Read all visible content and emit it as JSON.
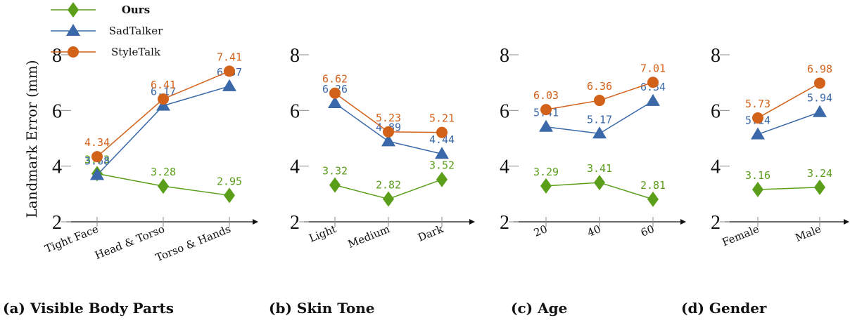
{
  "colors": {
    "ours": "#5a9e1a",
    "sadtalker": "#3a68a8",
    "styletalk": "#d2611a",
    "axis": "#111111"
  },
  "ylabel": "Landmark Error (mm)",
  "legend": [
    {
      "key": "ours",
      "label": "Ours",
      "marker": "diamond"
    },
    {
      "key": "sadtalker",
      "label": "SadTalker",
      "marker": "triangle"
    },
    {
      "key": "styletalk",
      "label": "StyleTalk",
      "marker": "circle"
    }
  ],
  "chart_data": [
    {
      "type": "line",
      "caption": "(a) Visible Body Parts",
      "categories": [
        "Tight Face",
        "Head & Torso",
        "Torso & Hands"
      ],
      "ylim": [
        2,
        8
      ],
      "yticks": [
        2,
        4,
        6,
        8
      ],
      "series": [
        {
          "name": "Ours",
          "key": "ours",
          "values": [
            3.73,
            3.28,
            2.95
          ],
          "labels": [
            "3.73",
            "3.28",
            "2.95"
          ]
        },
        {
          "name": "SadTalker",
          "key": "sadtalker",
          "values": [
            3.68,
            6.17,
            6.87
          ],
          "labels": [
            "3.68",
            "6.17",
            "6.87"
          ]
        },
        {
          "name": "StyleTalk",
          "key": "styletalk",
          "values": [
            4.34,
            6.41,
            7.41
          ],
          "labels": [
            "4.34",
            "6.41",
            "7.41"
          ]
        }
      ]
    },
    {
      "type": "line",
      "caption": "(b) Skin Tone",
      "categories": [
        "Light",
        "Medium",
        "Dark"
      ],
      "ylim": [
        2,
        8
      ],
      "yticks": [
        2,
        4,
        6,
        8
      ],
      "series": [
        {
          "name": "Ours",
          "key": "ours",
          "values": [
            3.32,
            2.82,
            3.52
          ],
          "labels": [
            "3.32",
            "2.82",
            "3.52"
          ]
        },
        {
          "name": "SadTalker",
          "key": "sadtalker",
          "values": [
            6.26,
            4.89,
            4.44
          ],
          "labels": [
            "6.26",
            "4.89",
            "4.44"
          ]
        },
        {
          "name": "StyleTalk",
          "key": "styletalk",
          "values": [
            6.62,
            5.23,
            5.21
          ],
          "labels": [
            "6.62",
            "5.23",
            "5.21"
          ]
        }
      ]
    },
    {
      "type": "line",
      "caption": "(c) Age",
      "categories": [
        "20",
        "40",
        "60"
      ],
      "ylim": [
        2,
        8
      ],
      "yticks": [
        2,
        4,
        6,
        8
      ],
      "series": [
        {
          "name": "Ours",
          "key": "ours",
          "values": [
            3.29,
            3.41,
            2.81
          ],
          "labels": [
            "3.29",
            "3.41",
            "2.81"
          ]
        },
        {
          "name": "SadTalker",
          "key": "sadtalker",
          "values": [
            5.41,
            5.17,
            6.34
          ],
          "labels": [
            "5.41",
            "5.17",
            "6.34"
          ]
        },
        {
          "name": "StyleTalk",
          "key": "styletalk",
          "values": [
            6.03,
            6.36,
            7.01
          ],
          "labels": [
            "6.03",
            "6.36",
            "7.01"
          ]
        }
      ]
    },
    {
      "type": "line",
      "caption": "(d) Gender",
      "categories": [
        "Female",
        "Male"
      ],
      "ylim": [
        2,
        8
      ],
      "yticks": [
        2,
        4,
        6,
        8
      ],
      "series": [
        {
          "name": "Ours",
          "key": "ours",
          "values": [
            3.16,
            3.24
          ],
          "labels": [
            "3.16",
            "3.24"
          ]
        },
        {
          "name": "SadTalker",
          "key": "sadtalker",
          "values": [
            5.14,
            5.94
          ],
          "labels": [
            "5.14",
            "5.94"
          ]
        },
        {
          "name": "StyleTalk",
          "key": "styletalk",
          "values": [
            5.73,
            6.98
          ],
          "labels": [
            "5.73",
            "6.98"
          ]
        }
      ]
    }
  ]
}
